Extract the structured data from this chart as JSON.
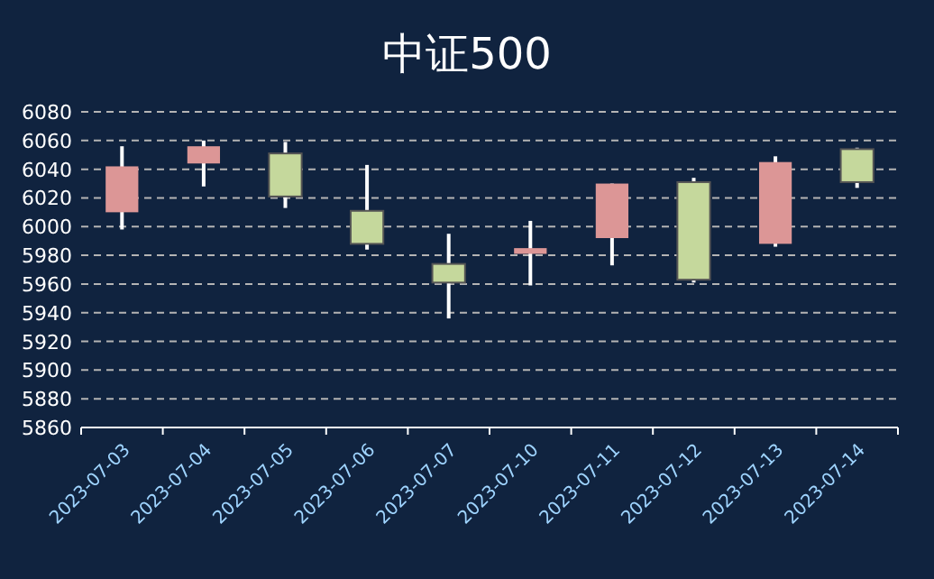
{
  "chart_data": {
    "type": "candlestick",
    "title": "中证500",
    "categories": [
      "2023-07-03",
      "2023-07-04",
      "2023-07-05",
      "2023-07-06",
      "2023-07-07",
      "2023-07-10",
      "2023-07-11",
      "2023-07-12",
      "2023-07-13",
      "2023-07-14"
    ],
    "ohlc": [
      [
        6010,
        6056,
        5998,
        6042
      ],
      [
        6044,
        6060,
        6028,
        6056
      ],
      [
        6051,
        6059,
        6013,
        6021
      ],
      [
        6011,
        6043,
        5984,
        5988
      ],
      [
        5974,
        5995,
        5936,
        5961
      ],
      [
        5981,
        6004,
        5959,
        5985
      ],
      [
        5992,
        6030,
        5973,
        6030
      ],
      [
        6031,
        6034,
        5961,
        5963
      ],
      [
        5988,
        6049,
        5986,
        6045
      ],
      [
        6054,
        6055,
        6027,
        6031
      ]
    ],
    "colors": [
      "#dc9696",
      "#dc9696",
      "#c5d89c",
      "#c5d89c",
      "#c5d89c",
      "#dc9696",
      "#dc9696",
      "#c5d89c",
      "#dc9696",
      "#c5d89c"
    ],
    "ylim": [
      5860,
      6080
    ],
    "yticks": [
      5860,
      5880,
      5900,
      5920,
      5940,
      5960,
      5980,
      6000,
      6020,
      6040,
      6060,
      6080
    ],
    "grid": "y"
  }
}
